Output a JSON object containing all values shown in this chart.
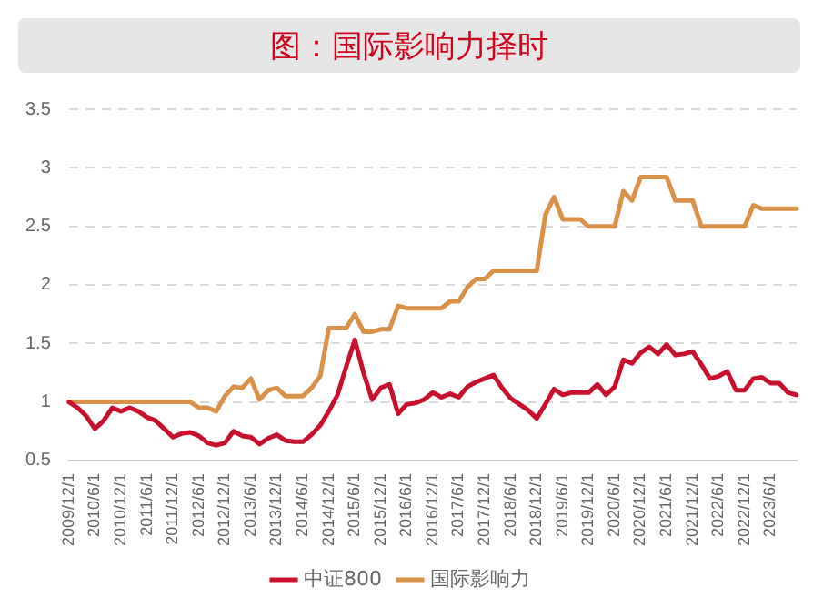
{
  "chart_data": {
    "type": "line",
    "title": "图：国际影响力择时",
    "categories": [
      "2009/12/1",
      null,
      null,
      "2010/6/1",
      null,
      null,
      "2010/12/1",
      null,
      null,
      "2011/6/1",
      null,
      null,
      "2011/12/1",
      null,
      null,
      "2012/6/1",
      null,
      null,
      "2012/12/1",
      null,
      null,
      "2013/6/1",
      null,
      null,
      "2013/12/1",
      null,
      null,
      "2014/6/1",
      null,
      null,
      "2014/12/1",
      null,
      null,
      "2015/6/1",
      null,
      null,
      "2015/12/1",
      null,
      null,
      "2016/6/1",
      null,
      null,
      "2016/12/1",
      null,
      null,
      "2017/6/1",
      null,
      null,
      "2017/12/1",
      null,
      null,
      "2018/6/1",
      null,
      null,
      "2018/12/1",
      null,
      null,
      "2019/6/1",
      null,
      null,
      "2019/12/1",
      null,
      null,
      "2020/6/1",
      null,
      null,
      "2020/12/1",
      null,
      null,
      "2021/6/1",
      null,
      null,
      "2021/12/1",
      null,
      null,
      "2022/6/1",
      null,
      null,
      "2022/12/1",
      null,
      null,
      "2023/6/1",
      null,
      null,
      null
    ],
    "series": [
      {
        "name": "中证800",
        "color": "#c8102e",
        "values": [
          1.0,
          0.95,
          0.88,
          0.77,
          0.84,
          0.95,
          0.92,
          0.95,
          0.92,
          0.87,
          0.84,
          0.77,
          0.7,
          0.73,
          0.74,
          0.71,
          0.65,
          0.63,
          0.65,
          0.75,
          0.71,
          0.7,
          0.64,
          0.69,
          0.72,
          0.67,
          0.66,
          0.66,
          0.72,
          0.8,
          0.92,
          1.06,
          1.3,
          1.53,
          1.25,
          1.02,
          1.12,
          1.15,
          0.9,
          0.98,
          0.99,
          1.02,
          1.08,
          1.04,
          1.07,
          1.04,
          1.13,
          1.17,
          1.2,
          1.23,
          1.12,
          1.03,
          0.98,
          0.93,
          0.86,
          0.98,
          1.11,
          1.06,
          1.08,
          1.08,
          1.08,
          1.15,
          1.06,
          1.13,
          1.36,
          1.33,
          1.42,
          1.47,
          1.41,
          1.49,
          1.4,
          1.41,
          1.43,
          1.32,
          1.2,
          1.22,
          1.26,
          1.1,
          1.1,
          1.2,
          1.21,
          1.16,
          1.16,
          1.08,
          1.06
        ]
      },
      {
        "name": "国际影响力",
        "color": "#d9914a",
        "values": [
          1.0,
          1.0,
          1.0,
          1.0,
          1.0,
          1.0,
          1.0,
          1.0,
          1.0,
          1.0,
          1.0,
          1.0,
          1.0,
          1.0,
          1.0,
          0.95,
          0.95,
          0.92,
          1.05,
          1.13,
          1.12,
          1.2,
          1.02,
          1.1,
          1.12,
          1.05,
          1.05,
          1.05,
          1.12,
          1.22,
          1.63,
          1.63,
          1.63,
          1.75,
          1.6,
          1.6,
          1.62,
          1.62,
          1.82,
          1.8,
          1.8,
          1.8,
          1.8,
          1.8,
          1.86,
          1.86,
          1.98,
          2.05,
          2.05,
          2.12,
          2.12,
          2.12,
          2.12,
          2.12,
          2.12,
          2.6,
          2.75,
          2.56,
          2.56,
          2.56,
          2.5,
          2.5,
          2.5,
          2.5,
          2.8,
          2.72,
          2.92,
          2.92,
          2.92,
          2.92,
          2.72,
          2.72,
          2.72,
          2.5,
          2.5,
          2.5,
          2.5,
          2.5,
          2.5,
          2.68,
          2.65,
          2.65,
          2.65,
          2.65,
          2.65
        ]
      }
    ],
    "ylim": [
      0.5,
      3.5
    ],
    "yticks": [
      0.5,
      1,
      1.5,
      2,
      2.5,
      3,
      3.5
    ],
    "grid": "y",
    "legend": "bottom",
    "marker": "none",
    "line_style": "solid"
  }
}
